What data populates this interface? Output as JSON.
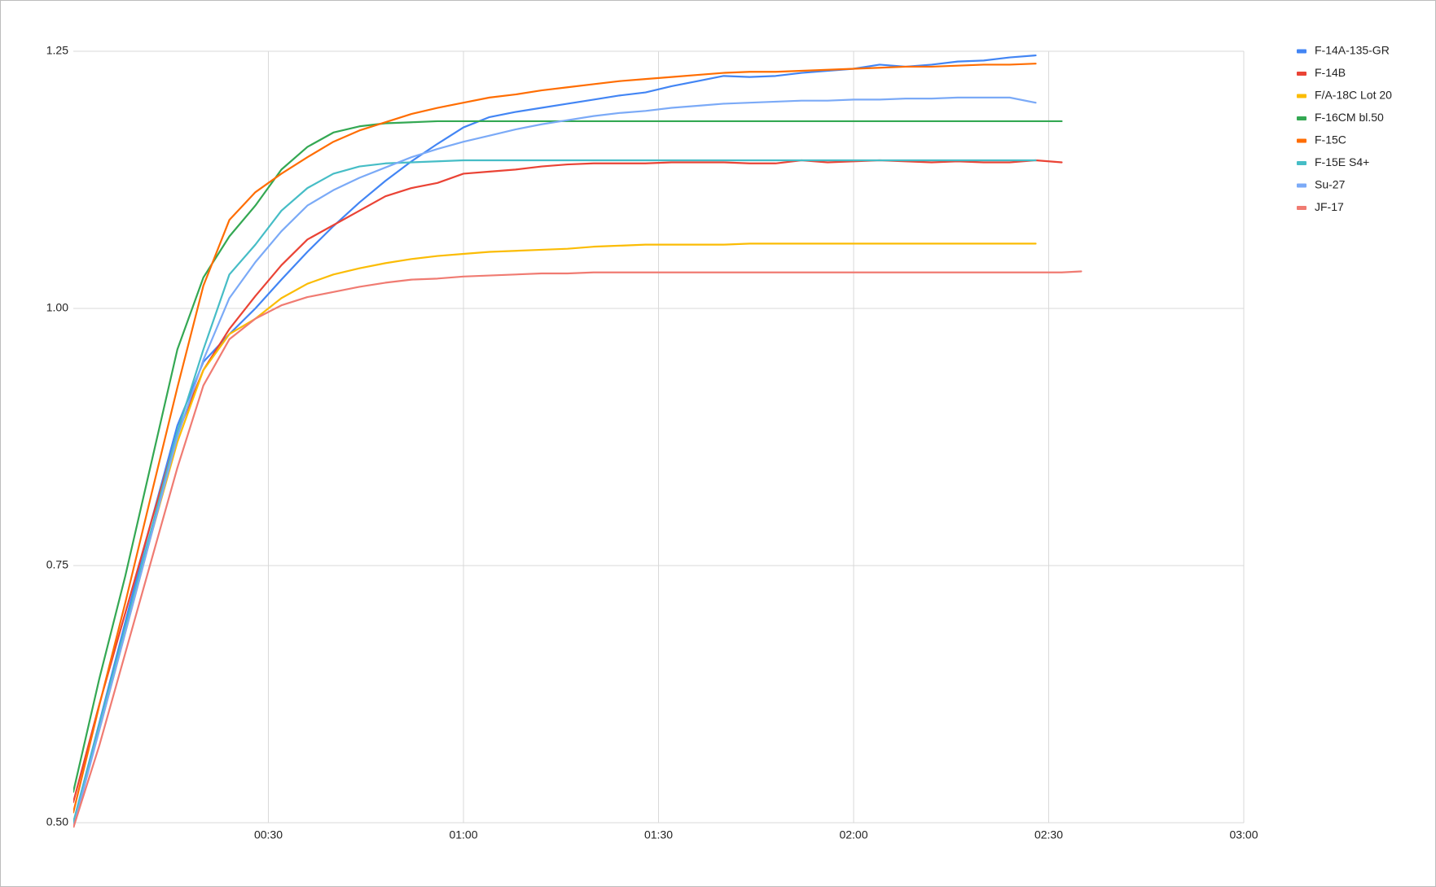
{
  "chart_data": {
    "type": "line",
    "x": [
      0,
      4,
      8,
      12,
      16,
      20,
      24,
      28,
      32,
      36,
      40,
      44,
      48,
      52,
      56,
      60,
      64,
      68,
      72,
      76,
      80,
      84,
      88,
      92,
      96,
      100,
      104,
      108,
      112,
      116,
      120,
      124,
      128,
      132,
      136,
      140,
      144,
      148,
      152,
      155
    ],
    "xlim": [
      0,
      180
    ],
    "xticks": [
      {
        "value": 30,
        "label": "00:30"
      },
      {
        "value": 60,
        "label": "01:00"
      },
      {
        "value": 90,
        "label": "01:30"
      },
      {
        "value": 120,
        "label": "02:00"
      },
      {
        "value": 150,
        "label": "02:30"
      },
      {
        "value": 180,
        "label": "03:00"
      }
    ],
    "ylim": [
      0.5,
      1.25
    ],
    "yticks": [
      {
        "value": 0.5,
        "label": "0.50"
      },
      0.75,
      {
        "value": 1,
        "label": "1.00"
      },
      1.25
    ],
    "grid": true,
    "legend": "right",
    "series": [
      {
        "name": "F-14A-135-GR",
        "color": "#4285f4",
        "values": [
          0.5,
          0.597,
          0.695,
          0.793,
          0.886,
          0.948,
          0.975,
          1.0,
          1.028,
          1.055,
          1.08,
          1.103,
          1.124,
          1.143,
          1.16,
          1.176,
          1.186,
          1.191,
          1.195,
          1.199,
          1.203,
          1.207,
          1.21,
          1.216,
          1.221,
          1.226,
          1.225,
          1.226,
          1.229,
          1.231,
          1.233,
          1.237,
          1.235,
          1.237,
          1.24,
          1.241,
          1.244,
          1.246,
          null,
          null
        ]
      },
      {
        "name": "F-14B",
        "color": "#ea4335",
        "values": [
          0.52,
          0.615,
          0.704,
          0.793,
          0.878,
          0.94,
          0.98,
          1.012,
          1.042,
          1.067,
          1.081,
          1.095,
          1.109,
          1.117,
          1.122,
          1.131,
          1.133,
          1.135,
          1.138,
          1.14,
          1.141,
          1.141,
          1.141,
          1.142,
          1.142,
          1.142,
          1.141,
          1.141,
          1.144,
          1.142,
          1.143,
          1.144,
          1.143,
          1.142,
          1.143,
          1.142,
          1.142,
          1.144,
          1.142,
          null
        ]
      },
      {
        "name": "F/A-18C Lot 20",
        "color": "#fbbc04",
        "values": [
          0.5,
          0.59,
          0.685,
          0.78,
          0.87,
          0.94,
          0.975,
          0.99,
          1.01,
          1.024,
          1.033,
          1.039,
          1.044,
          1.048,
          1.051,
          1.053,
          1.055,
          1.056,
          1.057,
          1.058,
          1.06,
          1.061,
          1.062,
          1.062,
          1.062,
          1.062,
          1.063,
          1.063,
          1.063,
          1.063,
          1.063,
          1.063,
          1.063,
          1.063,
          1.063,
          1.063,
          1.063,
          1.063,
          null,
          null
        ]
      },
      {
        "name": "F-16CM bl.50",
        "color": "#34a853",
        "values": [
          0.53,
          0.64,
          0.74,
          0.85,
          0.96,
          1.03,
          1.07,
          1.1,
          1.135,
          1.157,
          1.171,
          1.177,
          1.18,
          1.181,
          1.182,
          1.182,
          1.182,
          1.182,
          1.182,
          1.182,
          1.182,
          1.182,
          1.182,
          1.182,
          1.182,
          1.182,
          1.182,
          1.182,
          1.182,
          1.182,
          1.182,
          1.182,
          1.182,
          1.182,
          1.182,
          1.182,
          1.182,
          1.182,
          1.182,
          null
        ]
      },
      {
        "name": "F-15C",
        "color": "#ff6d01",
        "values": [
          0.51,
          0.614,
          0.714,
          0.819,
          0.923,
          1.022,
          1.086,
          1.113,
          1.131,
          1.147,
          1.162,
          1.173,
          1.181,
          1.189,
          1.195,
          1.2,
          1.205,
          1.208,
          1.212,
          1.215,
          1.218,
          1.221,
          1.223,
          1.225,
          1.227,
          1.229,
          1.23,
          1.23,
          1.231,
          1.232,
          1.233,
          1.234,
          1.235,
          1.235,
          1.236,
          1.237,
          1.237,
          1.238,
          null,
          null
        ]
      },
      {
        "name": "F-15E S4+",
        "color": "#46bdc6",
        "values": [
          0.5,
          0.595,
          0.69,
          0.785,
          0.88,
          0.96,
          1.033,
          1.062,
          1.095,
          1.117,
          1.131,
          1.138,
          1.141,
          1.142,
          1.143,
          1.144,
          1.144,
          1.144,
          1.144,
          1.144,
          1.144,
          1.144,
          1.144,
          1.144,
          1.144,
          1.144,
          1.144,
          1.144,
          1.144,
          1.144,
          1.144,
          1.144,
          1.144,
          1.144,
          1.144,
          1.144,
          1.144,
          1.144,
          null,
          null
        ]
      },
      {
        "name": "Su-27",
        "color": "#7baaf7",
        "values": [
          0.495,
          0.59,
          0.685,
          0.78,
          0.875,
          0.95,
          1.01,
          1.045,
          1.075,
          1.1,
          1.115,
          1.127,
          1.137,
          1.147,
          1.155,
          1.162,
          1.168,
          1.174,
          1.179,
          1.183,
          1.187,
          1.19,
          1.192,
          1.195,
          1.197,
          1.199,
          1.2,
          1.201,
          1.202,
          1.202,
          1.203,
          1.203,
          1.204,
          1.204,
          1.205,
          1.205,
          1.205,
          1.2,
          null,
          null
        ]
      },
      {
        "name": "JF-17",
        "color": "#f07b72",
        "values": [
          0.495,
          0.575,
          0.665,
          0.755,
          0.845,
          0.925,
          0.97,
          0.99,
          1.003,
          1.011,
          1.016,
          1.021,
          1.025,
          1.028,
          1.029,
          1.031,
          1.032,
          1.033,
          1.034,
          1.034,
          1.035,
          1.035,
          1.035,
          1.035,
          1.035,
          1.035,
          1.035,
          1.035,
          1.035,
          1.035,
          1.035,
          1.035,
          1.035,
          1.035,
          1.035,
          1.035,
          1.035,
          1.035,
          1.035,
          1.036
        ]
      }
    ]
  }
}
